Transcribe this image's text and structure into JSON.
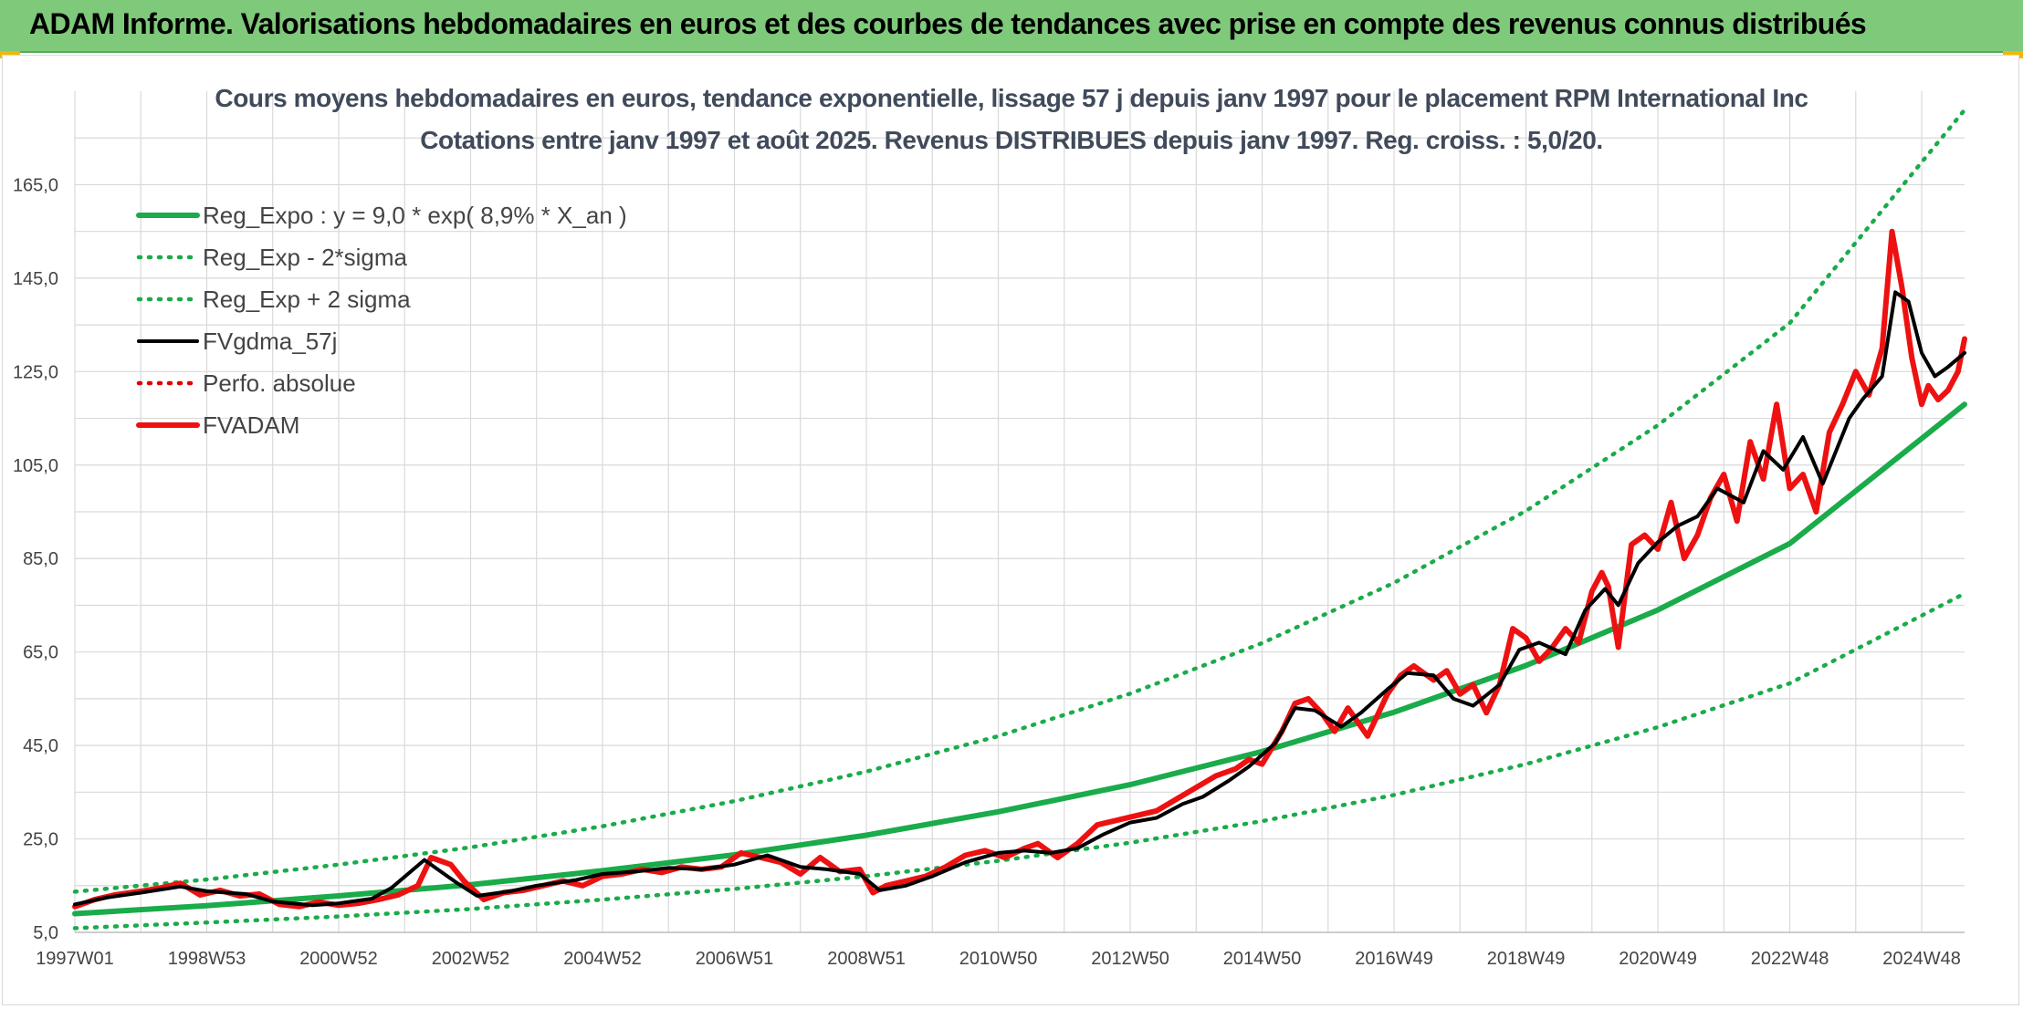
{
  "banner": {
    "title": "ADAM Informe. Valorisations hebdomadaires en euros et des courbes de tendances avec prise en compte des revenus connus distribués",
    "background": "#7fc97a"
  },
  "chart_data": {
    "type": "line",
    "title": "Cours moyens hebdomadaires en euros, tendance exponentielle, lissage 57 j depuis janv 1997 pour le placement RPM International Inc",
    "subtitle": "Cotations entre janv 1997 et août 2025. Revenus DISTRIBUES depuis janv 1997. Reg. croiss. : 5,0/20.",
    "xlabel": "",
    "ylabel": "",
    "x_tick_labels": [
      "1997W01",
      "1998W53",
      "2000W52",
      "2002W52",
      "2004W52",
      "2006W51",
      "2008W51",
      "2010W50",
      "2012W50",
      "2014W50",
      "2016W49",
      "2018W49",
      "2020W49",
      "2022W48",
      "2024W48"
    ],
    "x_range": [
      1997.0,
      2025.65
    ],
    "ylim": [
      5,
      185
    ],
    "y_ticks": [
      "5,0",
      "25,0",
      "45,0",
      "65,0",
      "85,0",
      "105,0",
      "125,0",
      "145,0",
      "165,0"
    ],
    "y_tick_values": [
      5,
      25,
      45,
      65,
      85,
      105,
      125,
      145,
      165
    ],
    "grid": true,
    "legend_position": "top-left",
    "series": [
      {
        "name": "Reg_Expo : y = 9,0 * exp( 8,9% *  X_an )",
        "style": "solid-thick",
        "color": "#1aab4a",
        "x": [
          1997.0,
          1999.0,
          2001.0,
          2003.0,
          2005.0,
          2007.0,
          2009.0,
          2011.0,
          2013.0,
          2015.0,
          2017.0,
          2019.0,
          2021.0,
          2023.0,
          2025.65
        ],
        "y": [
          9.0,
          10.7,
          12.8,
          15.2,
          18.2,
          21.6,
          25.8,
          30.8,
          36.6,
          43.7,
          52.1,
          62.1,
          74.0,
          88.2,
          118.0
        ]
      },
      {
        "name": "Reg_Exp - 2*sigma",
        "style": "dotted",
        "color": "#1aab4a",
        "x": [
          1997.0,
          1999.0,
          2001.0,
          2003.0,
          2005.0,
          2007.0,
          2009.0,
          2011.0,
          2013.0,
          2015.0,
          2017.0,
          2019.0,
          2021.0,
          2023.0,
          2025.65
        ],
        "y": [
          5.9,
          7.1,
          8.4,
          10.0,
          12.0,
          14.3,
          17.0,
          20.3,
          24.2,
          28.8,
          34.4,
          41.0,
          48.9,
          58.3,
          77.5
        ]
      },
      {
        "name": "Reg_Exp + 2 sigma",
        "style": "dotted",
        "color": "#1aab4a",
        "x": [
          1997.0,
          1999.0,
          2001.0,
          2003.0,
          2005.0,
          2007.0,
          2009.0,
          2011.0,
          2013.0,
          2015.0,
          2017.0,
          2019.0,
          2021.0,
          2023.0,
          2025.65
        ],
        "y": [
          13.7,
          16.3,
          19.5,
          23.2,
          27.7,
          33.1,
          39.4,
          47.0,
          56.1,
          66.9,
          79.8,
          95.2,
          113.5,
          135.4,
          181.0
        ]
      },
      {
        "name": "FVgdma_57j",
        "style": "solid",
        "color": "#000000",
        "x": [
          1997.0,
          1997.5,
          1998.0,
          1998.6,
          1999.0,
          1999.6,
          2000.0,
          2000.6,
          2001.0,
          2001.5,
          2001.8,
          2002.3,
          2002.8,
          2003.1,
          2003.6,
          2004.0,
          2004.6,
          2005.0,
          2005.5,
          2006.0,
          2006.5,
          2007.0,
          2007.5,
          2008.0,
          2008.4,
          2008.9,
          2009.2,
          2009.6,
          2010.0,
          2010.5,
          2011.0,
          2011.4,
          2011.8,
          2012.2,
          2012.6,
          2013.0,
          2013.4,
          2013.8,
          2014.1,
          2014.5,
          2014.8,
          2015.2,
          2015.5,
          2015.8,
          2016.2,
          2016.5,
          2016.9,
          2017.2,
          2017.6,
          2017.9,
          2018.2,
          2018.6,
          2018.9,
          2019.2,
          2019.6,
          2019.9,
          2020.2,
          2020.4,
          2020.7,
          2021.0,
          2021.3,
          2021.6,
          2021.9,
          2022.3,
          2022.6,
          2022.9,
          2023.2,
          2023.5,
          2023.9,
          2024.1,
          2024.4,
          2024.6,
          2024.8,
          2025.0,
          2025.2,
          2025.4,
          2025.65
        ],
        "y": [
          11.0,
          12.5,
          13.5,
          14.8,
          13.8,
          13.2,
          11.6,
          10.8,
          11.2,
          12.2,
          14.5,
          20.5,
          15.5,
          12.8,
          13.8,
          15.0,
          16.2,
          17.5,
          18.0,
          18.8,
          18.5,
          19.5,
          21.5,
          19.0,
          18.5,
          17.5,
          14.0,
          15.0,
          17.0,
          20.0,
          22.0,
          22.5,
          22.0,
          23.0,
          26.0,
          28.5,
          29.5,
          32.5,
          34.0,
          37.5,
          40.5,
          45.5,
          53.0,
          52.5,
          49.0,
          52.0,
          57.0,
          60.5,
          60.0,
          55.0,
          53.5,
          58.0,
          65.5,
          67.0,
          64.5,
          74.0,
          78.5,
          75.0,
          84.0,
          88.5,
          92.0,
          94.0,
          100.0,
          97.0,
          108.0,
          104.0,
          111.0,
          101.0,
          115.0,
          119.0,
          124.0,
          142.0,
          140.0,
          129.0,
          124.0,
          126.0,
          129.0
        ]
      },
      {
        "name": "Perfo. absolue",
        "style": "dotted",
        "color": "#e00000",
        "x": [],
        "y": []
      },
      {
        "name": "FVADAM",
        "style": "solid-thick",
        "color": "#ee1111",
        "x": [
          1997.0,
          1997.3,
          1997.6,
          1998.0,
          1998.3,
          1998.6,
          1998.9,
          1999.2,
          1999.5,
          1999.8,
          2000.1,
          2000.4,
          2000.7,
          2001.0,
          2001.3,
          2001.6,
          2001.9,
          2002.2,
          2002.4,
          2002.7,
          2002.9,
          2003.2,
          2003.5,
          2003.8,
          2004.1,
          2004.4,
          2004.7,
          2005.0,
          2005.3,
          2005.6,
          2005.9,
          2006.2,
          2006.5,
          2006.8,
          2007.1,
          2007.4,
          2007.7,
          2008.0,
          2008.3,
          2008.6,
          2008.9,
          2009.1,
          2009.3,
          2009.6,
          2009.9,
          2010.2,
          2010.5,
          2010.8,
          2011.1,
          2011.4,
          2011.6,
          2011.9,
          2012.2,
          2012.5,
          2012.8,
          2013.1,
          2013.4,
          2013.7,
          2014.0,
          2014.3,
          2014.6,
          2014.8,
          2015.0,
          2015.3,
          2015.5,
          2015.7,
          2015.9,
          2016.1,
          2016.3,
          2016.6,
          2016.9,
          2017.1,
          2017.3,
          2017.6,
          2017.8,
          2018.0,
          2018.2,
          2018.4,
          2018.6,
          2018.8,
          2019.0,
          2019.2,
          2019.4,
          2019.6,
          2019.8,
          2020.0,
          2020.15,
          2020.25,
          2020.4,
          2020.6,
          2020.8,
          2021.0,
          2021.2,
          2021.4,
          2021.6,
          2021.8,
          2022.0,
          2022.2,
          2022.4,
          2022.6,
          2022.8,
          2023.0,
          2023.2,
          2023.4,
          2023.6,
          2023.8,
          2024.0,
          2024.2,
          2024.4,
          2024.55,
          2024.7,
          2024.85,
          2025.0,
          2025.1,
          2025.25,
          2025.4,
          2025.55,
          2025.65
        ],
        "y": [
          10.5,
          12.0,
          13.0,
          13.8,
          14.5,
          15.5,
          13.0,
          14.0,
          12.8,
          13.2,
          11.0,
          10.5,
          11.5,
          10.8,
          11.2,
          12.0,
          13.0,
          15.0,
          21.0,
          19.5,
          16.0,
          12.0,
          13.5,
          14.0,
          15.0,
          16.0,
          15.0,
          17.0,
          17.5,
          18.5,
          17.8,
          19.0,
          18.5,
          19.0,
          22.0,
          21.0,
          20.0,
          17.5,
          21.0,
          18.0,
          18.5,
          13.5,
          15.0,
          16.0,
          17.0,
          19.0,
          21.5,
          22.5,
          21.0,
          23.0,
          24.0,
          21.0,
          24.0,
          28.0,
          29.0,
          30.0,
          31.0,
          33.5,
          36.0,
          38.5,
          40.0,
          42.0,
          41.0,
          48.0,
          54.0,
          55.0,
          52.0,
          48.0,
          53.0,
          47.0,
          56.0,
          60.0,
          62.0,
          59.0,
          61.0,
          56.0,
          58.0,
          52.0,
          58.0,
          70.0,
          68.0,
          63.0,
          66.0,
          70.0,
          67.0,
          78.0,
          82.0,
          79.0,
          66.0,
          88.0,
          90.0,
          87.0,
          97.0,
          85.0,
          90.0,
          98.0,
          103.0,
          93.0,
          110.0,
          102.0,
          118.0,
          100.0,
          103.0,
          95.0,
          112.0,
          118.0,
          125.0,
          120.0,
          130.0,
          155.0,
          143.0,
          128.0,
          118.0,
          122.0,
          119.0,
          121.0,
          125.0,
          132.0
        ]
      }
    ]
  }
}
